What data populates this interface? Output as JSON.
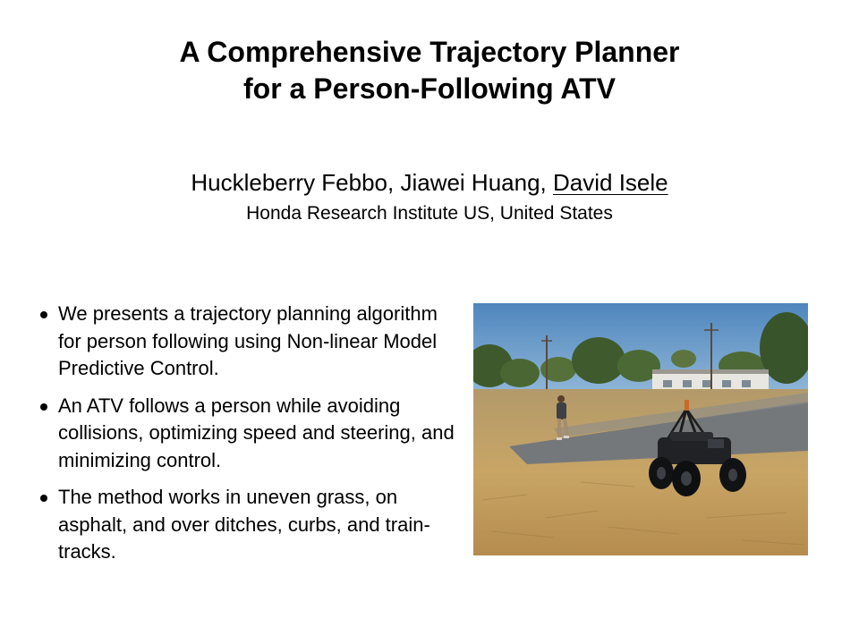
{
  "slide": {
    "title_line1": "A Comprehensive Trajectory Planner",
    "title_line2": "for a Person-Following ATV",
    "authors_plain": "Huckleberry Febbo, Jiawei Huang, ",
    "author_presenter": "David Isele",
    "affiliation": "Honda Research Institute US, United States",
    "bullets": [
      "We presents a trajectory planning algorithm for person following using Non-linear Model Predictive Control.",
      "An ATV follows a person while avoiding collisions, optimizing speed and steering, and minimizing control.",
      "The method works in uneven grass, on asphalt, and over ditches, curbs, and train-tracks."
    ]
  },
  "colors": {
    "text": "#000000",
    "background": "#ffffff",
    "sky": "#5f93c4",
    "grass": "#c5a368",
    "asphalt": "#6f7274"
  }
}
